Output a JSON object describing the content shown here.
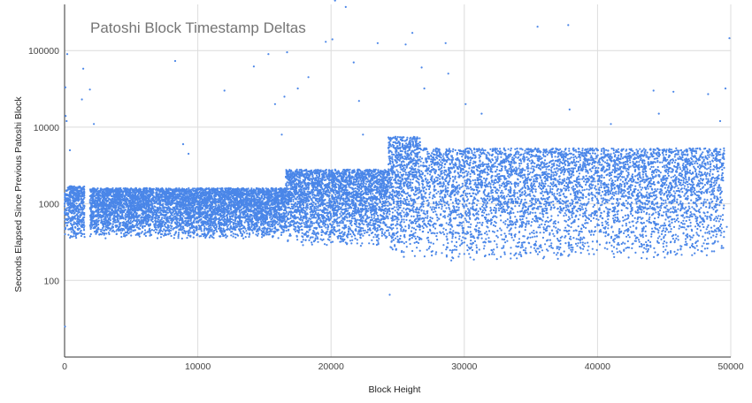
{
  "chart_data": {
    "type": "scatter",
    "title": "Patoshi Block Timestamp Deltas",
    "xlabel": "Block Height",
    "ylabel": "Seconds Elapsed Since Previous Patoshi Block",
    "xlim": [
      0,
      50000
    ],
    "ylim": [
      10,
      400000
    ],
    "y_scale": "log",
    "grid": true,
    "legend": "none",
    "x_ticks": [
      "0",
      "10000",
      "20000",
      "30000",
      "40000",
      "50000"
    ],
    "x_tick_values": [
      0,
      10000,
      20000,
      30000,
      40000,
      50000
    ],
    "y_ticks": [
      "100",
      "1000",
      "10000",
      "100000"
    ],
    "y_tick_values": [
      100,
      1000,
      10000,
      100000
    ],
    "series_color": "#4a86e8",
    "dense_regions": [
      {
        "x": [
          0,
          1500
        ],
        "y": [
          350,
          1700
        ],
        "count": 500
      },
      {
        "x": [
          1900,
          16600
        ],
        "y": [
          350,
          1600
        ],
        "count": 5500
      },
      {
        "x": [
          16600,
          24300
        ],
        "y": [
          280,
          2800
        ],
        "count": 2800
      },
      {
        "x": [
          24300,
          26800
        ],
        "y": [
          200,
          7500
        ],
        "count": 900
      },
      {
        "x": [
          26800,
          37800
        ],
        "y": [
          180,
          5300
        ],
        "count": 2600
      },
      {
        "x": [
          37800,
          49500
        ],
        "y": [
          180,
          5300
        ],
        "count": 2700
      }
    ],
    "outliers": [
      {
        "x": 30,
        "y": 25
      },
      {
        "x": 60,
        "y": 33000
      },
      {
        "x": 80,
        "y": 14000
      },
      {
        "x": 150,
        "y": 12000
      },
      {
        "x": 200,
        "y": 90000
      },
      {
        "x": 400,
        "y": 5000
      },
      {
        "x": 1400,
        "y": 58000
      },
      {
        "x": 1300,
        "y": 23000
      },
      {
        "x": 1900,
        "y": 31000
      },
      {
        "x": 2200,
        "y": 11000
      },
      {
        "x": 8300,
        "y": 73000
      },
      {
        "x": 8900,
        "y": 6000
      },
      {
        "x": 9300,
        "y": 4500
      },
      {
        "x": 12000,
        "y": 30000
      },
      {
        "x": 14200,
        "y": 62000
      },
      {
        "x": 15300,
        "y": 90000
      },
      {
        "x": 15800,
        "y": 20000
      },
      {
        "x": 16300,
        "y": 8000
      },
      {
        "x": 16700,
        "y": 95000
      },
      {
        "x": 16500,
        "y": 25000
      },
      {
        "x": 17500,
        "y": 32000
      },
      {
        "x": 18300,
        "y": 45000
      },
      {
        "x": 19600,
        "y": 130000
      },
      {
        "x": 20100,
        "y": 140000
      },
      {
        "x": 20300,
        "y": 450000
      },
      {
        "x": 21100,
        "y": 370000
      },
      {
        "x": 21700,
        "y": 70000
      },
      {
        "x": 22100,
        "y": 22000
      },
      {
        "x": 22400,
        "y": 8000
      },
      {
        "x": 23500,
        "y": 125000
      },
      {
        "x": 24400,
        "y": 65
      },
      {
        "x": 25600,
        "y": 120000
      },
      {
        "x": 26100,
        "y": 170000
      },
      {
        "x": 26800,
        "y": 60000
      },
      {
        "x": 27000,
        "y": 32000
      },
      {
        "x": 28600,
        "y": 125000
      },
      {
        "x": 28800,
        "y": 50000
      },
      {
        "x": 30100,
        "y": 20000
      },
      {
        "x": 31300,
        "y": 15000
      },
      {
        "x": 35500,
        "y": 205000
      },
      {
        "x": 37800,
        "y": 215000
      },
      {
        "x": 37900,
        "y": 17000
      },
      {
        "x": 41000,
        "y": 11000
      },
      {
        "x": 44200,
        "y": 30000
      },
      {
        "x": 44600,
        "y": 15000
      },
      {
        "x": 45700,
        "y": 29000
      },
      {
        "x": 48300,
        "y": 27000
      },
      {
        "x": 49600,
        "y": 32000
      },
      {
        "x": 49900,
        "y": 145000
      },
      {
        "x": 49200,
        "y": 12000
      },
      {
        "x": 49700,
        "y": 500
      }
    ]
  }
}
